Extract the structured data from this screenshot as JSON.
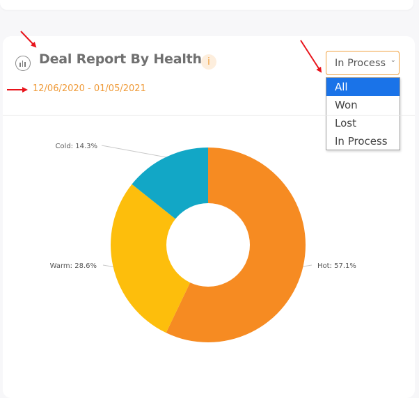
{
  "colors": {
    "accent": "#ef9a38",
    "hot": "#f68b22",
    "warm": "#fdbe0c",
    "cold": "#12a7c6",
    "selected_option": "#1a73e8",
    "annotation_arrow": "#e8141b"
  },
  "header": {
    "title": "Deal Report By Health",
    "info_glyph": "i",
    "date_range": "12/06/2020 - 01/05/2021",
    "icon": "chart-bars-icon"
  },
  "filter": {
    "selected": "In Process",
    "options": [
      "All",
      "Won",
      "Lost",
      "In Process"
    ],
    "highlighted": "All"
  },
  "chart_data": {
    "type": "pie",
    "donut": true,
    "slices": [
      {
        "name": "Hot",
        "value": 57.1,
        "label": "Hot: 57.1%"
      },
      {
        "name": "Warm",
        "value": 28.6,
        "label": "Warm: 28.6%"
      },
      {
        "name": "Cold",
        "value": 14.3,
        "label": "Cold: 14.3%"
      }
    ]
  }
}
